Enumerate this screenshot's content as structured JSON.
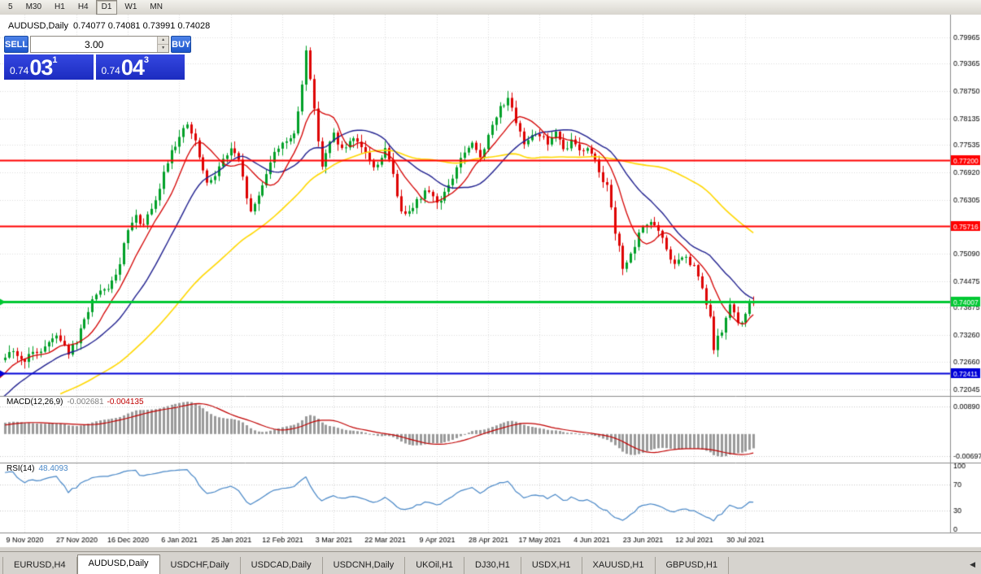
{
  "toolbar": {
    "timeframes": [
      "5",
      "M30",
      "H1",
      "H4",
      "D1",
      "W1",
      "MN"
    ],
    "active": "D1"
  },
  "chart": {
    "title": "AUDUSD,Daily",
    "ohlc_text": "0.74077 0.74081 0.73991 0.74028"
  },
  "one_click": {
    "sell_label": "SELL",
    "buy_label": "BUY",
    "volume": "3.00",
    "sell_price": {
      "prefix": "0.74",
      "big": "03",
      "sup": "1"
    },
    "buy_price": {
      "prefix": "0.74",
      "big": "04",
      "sup": "3"
    }
  },
  "indicators": {
    "macd": {
      "label": "MACD(12,26,9)",
      "value_main": "-0.002681",
      "value_signal": "-0.004135",
      "axis_max_label": "0.00890",
      "axis_min_label": "-0.00697",
      "axis_max": 0.0089,
      "axis_min": -0.00697
    },
    "rsi": {
      "label": "RSI(14)",
      "value": "48.4093",
      "levels": [
        100,
        70,
        30,
        0
      ],
      "level_lines": [
        70,
        30
      ]
    }
  },
  "chart_data": {
    "type": "candlestick",
    "symbol": "AUDUSD",
    "period": "Daily",
    "current": {
      "open": 0.74077,
      "high": 0.74081,
      "low": 0.73991,
      "close": 0.74028
    },
    "y_ticks": [
      0.79965,
      0.79365,
      0.7875,
      0.78135,
      0.77535,
      0.7692,
      0.76305,
      0.75705,
      0.7509,
      0.74475,
      0.73875,
      0.7326,
      0.7266,
      0.72045
    ],
    "x_ticks": [
      "9 Nov 2020",
      "27 Nov 2020",
      "16 Dec 2020",
      "6 Jan 2021",
      "25 Jan 2021",
      "12 Feb 2021",
      "3 Mar 2021",
      "22 Mar 2021",
      "9 Apr 2021",
      "28 Apr 2021",
      "17 May 2021",
      "4 Jun 2021",
      "23 Jun 2021",
      "12 Jul 2021",
      "30 Jul 2021"
    ],
    "price_top": 0.8047,
    "price_bottom": 0.7189,
    "visible_bars": 190,
    "lead_in_bars": 40,
    "first_tick_bar": 5,
    "tick_step": 13,
    "trend_anchors": [
      [
        -40,
        0.708
      ],
      [
        -28,
        0.716
      ],
      [
        -18,
        0.711
      ],
      [
        -8,
        0.721
      ],
      [
        0,
        0.727
      ],
      [
        2,
        0.7292
      ],
      [
        4,
        0.7268
      ],
      [
        7,
        0.7282
      ],
      [
        10,
        0.73
      ],
      [
        13,
        0.733
      ],
      [
        16,
        0.7288
      ],
      [
        18,
        0.7308
      ],
      [
        20,
        0.736
      ],
      [
        22,
        0.7405
      ],
      [
        25,
        0.7425
      ],
      [
        28,
        0.7455
      ],
      [
        31,
        0.756
      ],
      [
        33,
        0.759
      ],
      [
        35,
        0.7572
      ],
      [
        38,
        0.7625
      ],
      [
        40,
        0.769
      ],
      [
        42,
        0.7745
      ],
      [
        44,
        0.777
      ],
      [
        46,
        0.78
      ],
      [
        48,
        0.7758
      ],
      [
        51,
        0.7662
      ],
      [
        54,
        0.7705
      ],
      [
        57,
        0.7745
      ],
      [
        59,
        0.7715
      ],
      [
        62,
        0.76
      ],
      [
        64,
        0.764
      ],
      [
        67,
        0.7718
      ],
      [
        70,
        0.7762
      ],
      [
        73,
        0.7772
      ],
      [
        75,
        0.789
      ],
      [
        76,
        0.7972
      ],
      [
        77,
        0.7905
      ],
      [
        78,
        0.783
      ],
      [
        80,
        0.7708
      ],
      [
        83,
        0.778
      ],
      [
        85,
        0.7742
      ],
      [
        88,
        0.7762
      ],
      [
        91,
        0.7738
      ],
      [
        93,
        0.77
      ],
      [
        96,
        0.7742
      ],
      [
        98,
        0.769
      ],
      [
        100,
        0.7598
      ],
      [
        102,
        0.7612
      ],
      [
        105,
        0.7635
      ],
      [
        107,
        0.7655
      ],
      [
        109,
        0.7622
      ],
      [
        112,
        0.7658
      ],
      [
        115,
        0.7725
      ],
      [
        118,
        0.7752
      ],
      [
        120,
        0.7728
      ],
      [
        122,
        0.7772
      ],
      [
        125,
        0.7838
      ],
      [
        127,
        0.7862
      ],
      [
        129,
        0.7798
      ],
      [
        131,
        0.7758
      ],
      [
        133,
        0.7782
      ],
      [
        135,
        0.7778
      ],
      [
        137,
        0.7758
      ],
      [
        139,
        0.7782
      ],
      [
        141,
        0.7738
      ],
      [
        143,
        0.7762
      ],
      [
        145,
        0.7748
      ],
      [
        148,
        0.7738
      ],
      [
        150,
        0.7698
      ],
      [
        152,
        0.7658
      ],
      [
        154,
        0.7556
      ],
      [
        156,
        0.7482
      ],
      [
        158,
        0.7502
      ],
      [
        161,
        0.7572
      ],
      [
        163,
        0.7582
      ],
      [
        165,
        0.7558
      ],
      [
        167,
        0.7518
      ],
      [
        169,
        0.7482
      ],
      [
        171,
        0.7502
      ],
      [
        174,
        0.7478
      ],
      [
        176,
        0.743
      ],
      [
        178,
        0.736
      ],
      [
        179,
        0.73
      ],
      [
        181,
        0.7335
      ],
      [
        183,
        0.7392
      ],
      [
        185,
        0.7352
      ],
      [
        187,
        0.7368
      ],
      [
        188,
        0.7398
      ],
      [
        189,
        0.7403
      ]
    ],
    "horizontal_lines": [
      {
        "price": 0.772,
        "label": "0.77200",
        "color": "#FF0000",
        "width": 2,
        "left_marker": false
      },
      {
        "price": 0.75716,
        "label": "0.75716",
        "color": "#FF0000",
        "width": 2,
        "left_marker": false
      },
      {
        "price": 0.74007,
        "label": "0.74007",
        "color": "#00C832",
        "width": 3,
        "left_marker": true
      },
      {
        "price": 0.72411,
        "label": "0.72411",
        "color": "#0000D8",
        "width": 2,
        "left_marker": true
      }
    ],
    "moving_averages": [
      {
        "period": 55,
        "color": "#FFD800",
        "width": 1.6
      },
      {
        "period": 21,
        "color": "#20208F",
        "width": 1.4
      },
      {
        "period": 9,
        "color": "#D40000",
        "width": 1.3
      }
    ],
    "colors": {
      "up": "#00A028",
      "down": "#DE0000",
      "grid": "#DCDCDC",
      "separator": "#8C8C8C",
      "macd_hist": "#9A9A9A",
      "macd_signal": "#C00000",
      "rsi_line": "#4887C7",
      "background": "#FFFFFF",
      "window_chrome": "#D6D3CE"
    }
  },
  "tabs": {
    "items": [
      "EURUSD,H4",
      "AUDUSD,Daily",
      "USDCHF,Daily",
      "USDCAD,Daily",
      "USDCNH,Daily",
      "UKOil,H1",
      "DJ30,H1",
      "USDX,H1",
      "XAUUSD,H1",
      "GBPUSD,H1"
    ],
    "active": "AUDUSD,Daily",
    "scroll_left_glyph": "◀"
  }
}
